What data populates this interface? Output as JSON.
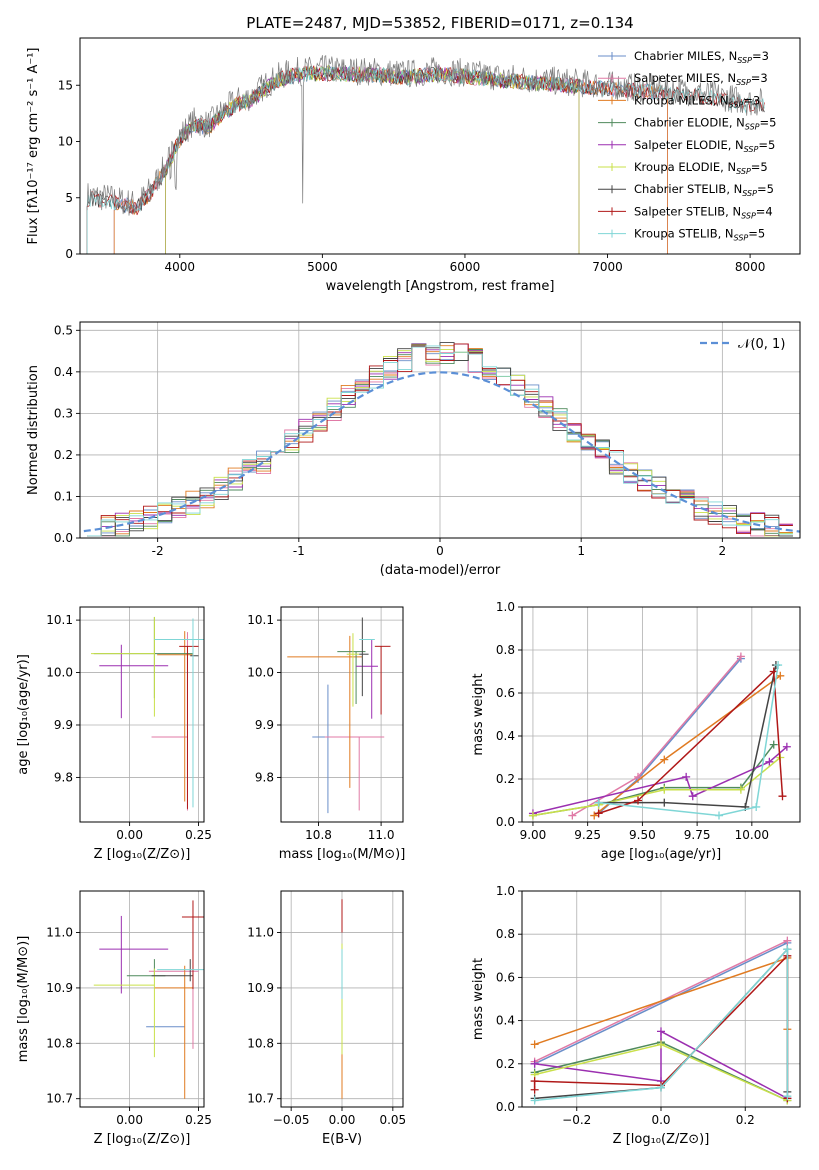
{
  "figure_title": "PLATE=2487, MJD=53852, FIBERID=0171, z=0.134",
  "colors": {
    "Chabrier MILES": "#6a8ec9",
    "Salpeter MILES": "#e07aa6",
    "Kroupa MILES": "#e07b22",
    "Chabrier ELODIE": "#4f8a5c",
    "Salpeter ELODIE": "#9b2fb0",
    "Kroupa ELODIE": "#c9e04a",
    "Chabrier STELIB": "#444444",
    "Salpeter STELIB": "#b01818",
    "Kroupa STELIB": "#7fd6d6",
    "normal_curve": "#5b8fd6"
  },
  "chart_data": [
    {
      "id": "spectrum",
      "type": "line",
      "title": "PLATE=2487, MJD=53852, FIBERID=0171, z=0.134",
      "xlabel": "wavelength [Angstrom, rest frame]",
      "ylabel": "Flux [fλ10⁻¹⁷ erg cm⁻² s⁻¹ A⁻¹]",
      "xlim": [
        3300,
        8350
      ],
      "ylim": [
        0,
        19.2
      ],
      "xticks": [
        4000,
        5000,
        6000,
        7000,
        8000
      ],
      "yticks": [
        0,
        5,
        10,
        15
      ],
      "grid": false,
      "legend_position": "top-right",
      "legend": [
        {
          "name": "Chabrier MILES",
          "label": "Chabrier MILES, N",
          "sub": "SSP",
          "tail": "=3"
        },
        {
          "name": "Salpeter MILES",
          "label": "Salpeter MILES, N",
          "sub": "SSP",
          "tail": "=3"
        },
        {
          "name": "Kroupa MILES",
          "label": "Kroupa MILES, N",
          "sub": "SSP",
          "tail": "=3"
        },
        {
          "name": "Chabrier ELODIE",
          "label": "Chabrier ELODIE, N",
          "sub": "SSP",
          "tail": "=5"
        },
        {
          "name": "Salpeter ELODIE",
          "label": "Salpeter ELODIE, N",
          "sub": "SSP",
          "tail": "=5"
        },
        {
          "name": "Kroupa ELODIE",
          "label": "Kroupa ELODIE, N",
          "sub": "SSP",
          "tail": "=5"
        },
        {
          "name": "Chabrier STELIB",
          "label": "Chabrier STELIB, N",
          "sub": "SSP",
          "tail": "=5"
        },
        {
          "name": "Salpeter STELIB",
          "label": "Salpeter STELIB, N",
          "sub": "SSP",
          "tail": "=4"
        },
        {
          "name": "Kroupa STELIB",
          "label": "Kroupa STELIB, N",
          "sub": "SSP",
          "tail": "=5"
        }
      ],
      "continuum": {
        "x": [
          3350,
          3500,
          3700,
          3800,
          3900,
          4000,
          4100,
          4200,
          4300,
          4400,
          4500,
          4600,
          4700,
          4800,
          5000,
          5200,
          5400,
          5600,
          5800,
          6000,
          6200,
          6400,
          6600,
          6800,
          7000,
          7200,
          7400,
          7600,
          7800,
          8000,
          8100
        ],
        "y": [
          5.2,
          5.0,
          4.4,
          5.8,
          7.8,
          10.5,
          11.8,
          11.5,
          12.7,
          13.6,
          14.0,
          15.0,
          15.8,
          16.2,
          16.4,
          16.3,
          16.2,
          16.0,
          16.3,
          16.1,
          15.8,
          15.6,
          15.4,
          15.2,
          15.0,
          14.8,
          14.6,
          14.4,
          14.0,
          13.5,
          13.5
        ]
      },
      "model_ranges": {
        "MILES": [
          3540,
          7420
        ],
        "ELODIE": [
          3900,
          6800
        ],
        "STELIB": [
          3350,
          8100
        ]
      }
    },
    {
      "id": "residuals",
      "type": "histogram",
      "xlabel": "(data-model)/error",
      "ylabel": "Normed distribution",
      "xlim": [
        -2.55,
        2.55
      ],
      "ylim": [
        0,
        0.52
      ],
      "xticks": [
        -2,
        -1,
        0,
        1,
        2
      ],
      "yticks": [
        0.0,
        0.1,
        0.2,
        0.3,
        0.4,
        0.5
      ],
      "grid": true,
      "legend_position": "top-right",
      "normal_label": "𝒩(0, 1)",
      "bin_width": 0.1
    },
    {
      "id": "z-age",
      "type": "errorbar",
      "xlabel": "Z [log₁₀(Z/Z⊙)]",
      "ylabel": "age  [log₁₀(age/yr)]",
      "xlim": [
        -0.18,
        0.27
      ],
      "ylim": [
        9.715,
        10.125
      ],
      "xticks": [
        0.0,
        0.25
      ],
      "yticks": [
        9.8,
        9.9,
        10.0,
        10.1
      ],
      "grid": true,
      "points": [
        {
          "series": "Chabrier MILES",
          "x": 0.19,
          "xerr": [
            0.11,
            0.02
          ],
          "y": 9.877,
          "yerr": [
            0.0,
            0.0
          ]
        },
        {
          "series": "Salpeter MILES",
          "x": 0.21,
          "xerr": [
            0.13,
            0.0
          ],
          "y": 9.877,
          "yerr": [
            0.14,
            0.2
          ]
        },
        {
          "series": "Kroupa MILES",
          "x": 0.2,
          "xerr": [
            0.1,
            0.03
          ],
          "y": 10.034,
          "yerr": [
            0.28,
            0.045
          ]
        },
        {
          "series": "Chabrier ELODIE",
          "x": 0.09,
          "xerr": [
            0.22,
            0.14
          ],
          "y": 10.036,
          "yerr": [
            0.085,
            0.07
          ]
        },
        {
          "series": "Salpeter ELODIE",
          "x": -0.03,
          "xerr": [
            0.08,
            0.17
          ],
          "y": 10.013,
          "yerr": [
            0.1,
            0.04
          ]
        },
        {
          "series": "Kroupa ELODIE",
          "x": 0.09,
          "xerr": [
            0.23,
            0.0
          ],
          "y": 10.036,
          "yerr": [
            0.12,
            0.07
          ]
        },
        {
          "series": "Chabrier STELIB",
          "x": 0.22,
          "xerr": [
            0.0,
            0.03
          ],
          "y": 10.032,
          "yerr": [
            0.0,
            0.0
          ]
        },
        {
          "series": "Salpeter STELIB",
          "x": 0.21,
          "xerr": [
            0.03,
            0.04
          ],
          "y": 10.05,
          "yerr": [
            0.31,
            0.0
          ]
        },
        {
          "series": "Kroupa STELIB",
          "x": 0.23,
          "xerr": [
            0.14,
            0.04
          ],
          "y": 10.063,
          "yerr": [
            0.32,
            0.04
          ]
        }
      ]
    },
    {
      "id": "mass-age",
      "type": "errorbar",
      "xlabel": "mass [log₁₀(M/M⊙)]",
      "ylabel": "",
      "xlim": [
        10.68,
        11.07
      ],
      "ylim": [
        9.715,
        10.125
      ],
      "xticks": [
        10.8,
        11.0
      ],
      "yticks": [
        9.8,
        9.9,
        10.0,
        10.1
      ],
      "grid": true,
      "points": [
        {
          "series": "Chabrier MILES",
          "x": 10.83,
          "xerr": [
            0.05,
            0.03
          ],
          "y": 9.877,
          "yerr": [
            0.145,
            0.1
          ]
        },
        {
          "series": "Salpeter MILES",
          "x": 10.93,
          "xerr": [
            0.11,
            0.08
          ],
          "y": 9.877,
          "yerr": [
            0.14,
            0.0
          ]
        },
        {
          "series": "Kroupa MILES",
          "x": 10.9,
          "xerr": [
            0.2,
            0.04
          ],
          "y": 10.03,
          "yerr": [
            0.25,
            0.04
          ]
        },
        {
          "series": "Chabrier ELODIE",
          "x": 10.92,
          "xerr": [
            0.06,
            0.03
          ],
          "y": 10.04,
          "yerr": [
            0.1,
            0.0
          ]
        },
        {
          "series": "Salpeter ELODIE",
          "x": 10.97,
          "xerr": [
            0.05,
            0.02
          ],
          "y": 10.012,
          "yerr": [
            0.1,
            0.05
          ]
        },
        {
          "series": "Kroupa ELODIE",
          "x": 10.91,
          "xerr": [
            0.02,
            0.02
          ],
          "y": 10.035,
          "yerr": [
            0.1,
            0.04
          ]
        },
        {
          "series": "Chabrier STELIB",
          "x": 10.94,
          "xerr": [
            0.01,
            0.02
          ],
          "y": 10.035,
          "yerr": [
            0.08,
            0.07
          ]
        },
        {
          "series": "Salpeter STELIB",
          "x": 11.0,
          "xerr": [
            0.02,
            0.03
          ],
          "y": 10.05,
          "yerr": [
            0.13,
            0.0
          ]
        },
        {
          "series": "Kroupa STELIB",
          "x": 10.95,
          "xerr": [
            0.02,
            0.03
          ],
          "y": 10.063,
          "yerr": [
            0.0,
            0.0
          ]
        }
      ]
    },
    {
      "id": "age-weight",
      "type": "line",
      "xlabel": "age  [log₁₀(age/yr)]",
      "ylabel": "mass weight",
      "xlim": [
        8.95,
        10.22
      ],
      "ylim": [
        0,
        1.0
      ],
      "xticks": [
        9.0,
        9.25,
        9.5,
        9.75,
        10.0
      ],
      "yticks": [
        0.0,
        0.2,
        0.4,
        0.6,
        0.8,
        1.0
      ],
      "grid": true,
      "series": [
        {
          "name": "Chabrier MILES",
          "x": [
            9.3,
            9.48,
            9.95
          ],
          "y": [
            0.04,
            0.2,
            0.76
          ]
        },
        {
          "name": "Salpeter MILES",
          "x": [
            9.18,
            9.48,
            9.95
          ],
          "y": [
            0.03,
            0.21,
            0.77
          ]
        },
        {
          "name": "Kroupa MILES",
          "x": [
            9.28,
            9.6,
            10.13
          ],
          "y": [
            0.03,
            0.29,
            0.68
          ]
        },
        {
          "name": "Chabrier ELODIE",
          "x": [
            9.0,
            9.3,
            9.6,
            9.95,
            10.1
          ],
          "y": [
            0.03,
            0.08,
            0.16,
            0.16,
            0.36
          ]
        },
        {
          "name": "Salpeter ELODIE",
          "x": [
            9.0,
            9.7,
            9.73,
            10.08,
            10.16
          ],
          "y": [
            0.04,
            0.21,
            0.12,
            0.28,
            0.35
          ]
        },
        {
          "name": "Kroupa ELODIE",
          "x": [
            9.0,
            9.3,
            9.6,
            9.95,
            10.13
          ],
          "y": [
            0.03,
            0.08,
            0.15,
            0.15,
            0.3
          ]
        },
        {
          "name": "Chabrier STELIB",
          "x": [
            9.3,
            9.6,
            9.97,
            10.11
          ],
          "y": [
            0.09,
            0.09,
            0.07,
            0.73
          ]
        },
        {
          "name": "Salpeter STELIB",
          "x": [
            9.3,
            9.48,
            10.1,
            10.14
          ],
          "y": [
            0.04,
            0.1,
            0.7,
            0.12
          ]
        },
        {
          "name": "Kroupa STELIB",
          "x": [
            9.3,
            9.85,
            10.02,
            10.12
          ],
          "y": [
            0.09,
            0.03,
            0.07,
            0.73
          ]
        }
      ]
    },
    {
      "id": "z-mass",
      "type": "errorbar",
      "xlabel": "Z [log₁₀(Z/Z⊙)]",
      "ylabel": "mass [log₁₀(M/M⊙)]",
      "xlim": [
        -0.18,
        0.27
      ],
      "ylim": [
        10.685,
        11.075
      ],
      "xticks": [
        0.0,
        0.25
      ],
      "yticks": [
        10.7,
        10.8,
        10.9,
        11.0
      ],
      "grid": true,
      "points": [
        {
          "series": "Chabrier MILES",
          "x": 0.12,
          "xerr": [
            0.06,
            0.08
          ],
          "y": 10.83,
          "yerr": [
            0.0,
            0.0
          ]
        },
        {
          "series": "Salpeter MILES",
          "x": 0.23,
          "xerr": [
            0.16,
            0.02
          ],
          "y": 10.93,
          "yerr": [
            0.14,
            0.0
          ]
        },
        {
          "series": "Kroupa MILES",
          "x": 0.2,
          "xerr": [
            0.11,
            0.03
          ],
          "y": 10.9,
          "yerr": [
            0.2,
            0.04
          ]
        },
        {
          "series": "Chabrier ELODIE",
          "x": 0.09,
          "xerr": [
            0.1,
            0.04
          ],
          "y": 10.922,
          "yerr": [
            0.0,
            0.03
          ]
        },
        {
          "series": "Salpeter ELODIE",
          "x": -0.03,
          "xerr": [
            0.08,
            0.17
          ],
          "y": 10.97,
          "yerr": [
            0.08,
            0.06
          ]
        },
        {
          "series": "Kroupa ELODIE",
          "x": 0.09,
          "xerr": [
            0.22,
            0.0
          ],
          "y": 10.905,
          "yerr": [
            0.13,
            0.03
          ]
        },
        {
          "series": "Chabrier STELIB",
          "x": 0.22,
          "xerr": [
            0.14,
            0.01
          ],
          "y": 10.922,
          "yerr": [
            0.01,
            0.03
          ]
        },
        {
          "series": "Salpeter STELIB",
          "x": 0.23,
          "xerr": [
            0.04,
            0.04
          ],
          "y": 11.028,
          "yerr": [
            0.13,
            0.03
          ]
        },
        {
          "series": "Kroupa STELIB",
          "x": 0.23,
          "xerr": [
            0.13,
            0.04
          ],
          "y": 10.933,
          "yerr": [
            0.0,
            0.0
          ]
        }
      ]
    },
    {
      "id": "ebv-mass",
      "type": "errorbar",
      "xlabel": "E(B-V)",
      "ylabel": "",
      "xlim": [
        -0.06,
        0.06
      ],
      "ylim": [
        10.685,
        11.075
      ],
      "xticks": [
        -0.05,
        0.0,
        0.05
      ],
      "yticks": [
        10.7,
        10.8,
        10.9,
        11.0
      ],
      "grid": true,
      "points": [
        {
          "series": "Kroupa MILES",
          "x": 0.0,
          "xerr": [
            0.0,
            0.0
          ],
          "y": 10.85,
          "yerr": [
            0.15,
            0.0
          ]
        },
        {
          "series": "Kroupa ELODIE",
          "x": 0.0,
          "xerr": [
            0.0,
            0.0
          ],
          "y": 10.9,
          "yerr": [
            0.12,
            0.08
          ]
        },
        {
          "series": "Salpeter STELIB",
          "x": 0.0,
          "xerr": [
            0.0,
            0.0
          ],
          "y": 11.0,
          "yerr": [
            0.0,
            0.06
          ]
        },
        {
          "series": "Kroupa STELIB",
          "x": 0.0,
          "xerr": [
            0.0,
            0.0
          ],
          "y": 10.93,
          "yerr": [
            0.05,
            0.04
          ]
        }
      ]
    },
    {
      "id": "z-weight",
      "type": "line",
      "xlabel": "Z [log₁₀(Z/Z⊙)]",
      "ylabel": "mass weight",
      "xlim": [
        -0.33,
        0.33
      ],
      "ylim": [
        0,
        1.0
      ],
      "xticks": [
        -0.2,
        0.0,
        0.2
      ],
      "yticks": [
        0.0,
        0.2,
        0.4,
        0.6,
        0.8,
        1.0
      ],
      "grid": true,
      "series": [
        {
          "name": "Chabrier MILES",
          "x": [
            -0.3,
            0.3
          ],
          "y": [
            0.2,
            0.76
          ]
        },
        {
          "name": "Salpeter MILES",
          "x": [
            -0.3,
            0.3
          ],
          "y": [
            0.21,
            0.77
          ]
        },
        {
          "name": "Kroupa MILES",
          "x": [
            -0.3,
            0.3,
            0.3
          ],
          "y": [
            0.29,
            0.69,
            0.36
          ]
        },
        {
          "name": "Chabrier ELODIE",
          "x": [
            -0.3,
            0.0,
            0.3
          ],
          "y": [
            0.16,
            0.3,
            0.03
          ]
        },
        {
          "name": "Salpeter ELODIE",
          "x": [
            -0.3,
            0.0,
            0.0,
            0.3
          ],
          "y": [
            0.2,
            0.12,
            0.35,
            0.04
          ]
        },
        {
          "name": "Kroupa ELODIE",
          "x": [
            -0.3,
            0.0,
            0.3
          ],
          "y": [
            0.15,
            0.29,
            0.03
          ]
        },
        {
          "name": "Chabrier STELIB",
          "x": [
            -0.3,
            0.0,
            0.3,
            0.3
          ],
          "y": [
            0.04,
            0.09,
            0.73,
            0.07
          ]
        },
        {
          "name": "Salpeter STELIB",
          "x": [
            -0.3,
            -0.3,
            0.0,
            0.3,
            0.3
          ],
          "y": [
            0.08,
            0.12,
            0.1,
            0.7,
            0.04
          ]
        },
        {
          "name": "Kroupa STELIB",
          "x": [
            -0.3,
            0.0,
            0.3,
            0.3
          ],
          "y": [
            0.03,
            0.09,
            0.73,
            0.05
          ]
        }
      ]
    }
  ]
}
